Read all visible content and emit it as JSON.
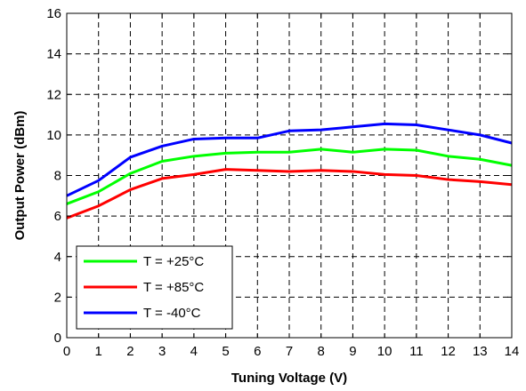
{
  "chart_data": {
    "type": "line",
    "title": "",
    "xlabel": "Tuning Voltage (V)",
    "ylabel": "Output Power (dBm)",
    "xlim": [
      0,
      14
    ],
    "ylim": [
      0,
      16
    ],
    "xticks": [
      0,
      1,
      2,
      3,
      4,
      5,
      6,
      7,
      8,
      9,
      10,
      11,
      12,
      13,
      14
    ],
    "yticks": [
      0,
      2,
      4,
      6,
      8,
      10,
      12,
      14,
      16
    ],
    "grid": true,
    "legend_position": "bottom-left",
    "x": [
      0,
      1,
      2,
      3,
      4,
      5,
      6,
      7,
      8,
      9,
      10,
      11,
      12,
      13,
      14
    ],
    "series": [
      {
        "name": "T = +25°C",
        "color": "#00ff00",
        "values": [
          6.6,
          7.2,
          8.1,
          8.7,
          8.95,
          9.1,
          9.15,
          9.15,
          9.3,
          9.15,
          9.3,
          9.25,
          8.95,
          8.8,
          8.5
        ]
      },
      {
        "name": "T = +85°C",
        "color": "#ff0000",
        "values": [
          5.9,
          6.5,
          7.3,
          7.85,
          8.05,
          8.3,
          8.25,
          8.2,
          8.25,
          8.2,
          8.05,
          8.0,
          7.8,
          7.7,
          7.55
        ]
      },
      {
        "name": "T = -40°C",
        "color": "#0000ff",
        "values": [
          7.0,
          7.75,
          8.9,
          9.45,
          9.8,
          9.85,
          9.85,
          10.2,
          10.25,
          10.4,
          10.55,
          10.5,
          10.25,
          10.0,
          9.6
        ]
      }
    ]
  }
}
